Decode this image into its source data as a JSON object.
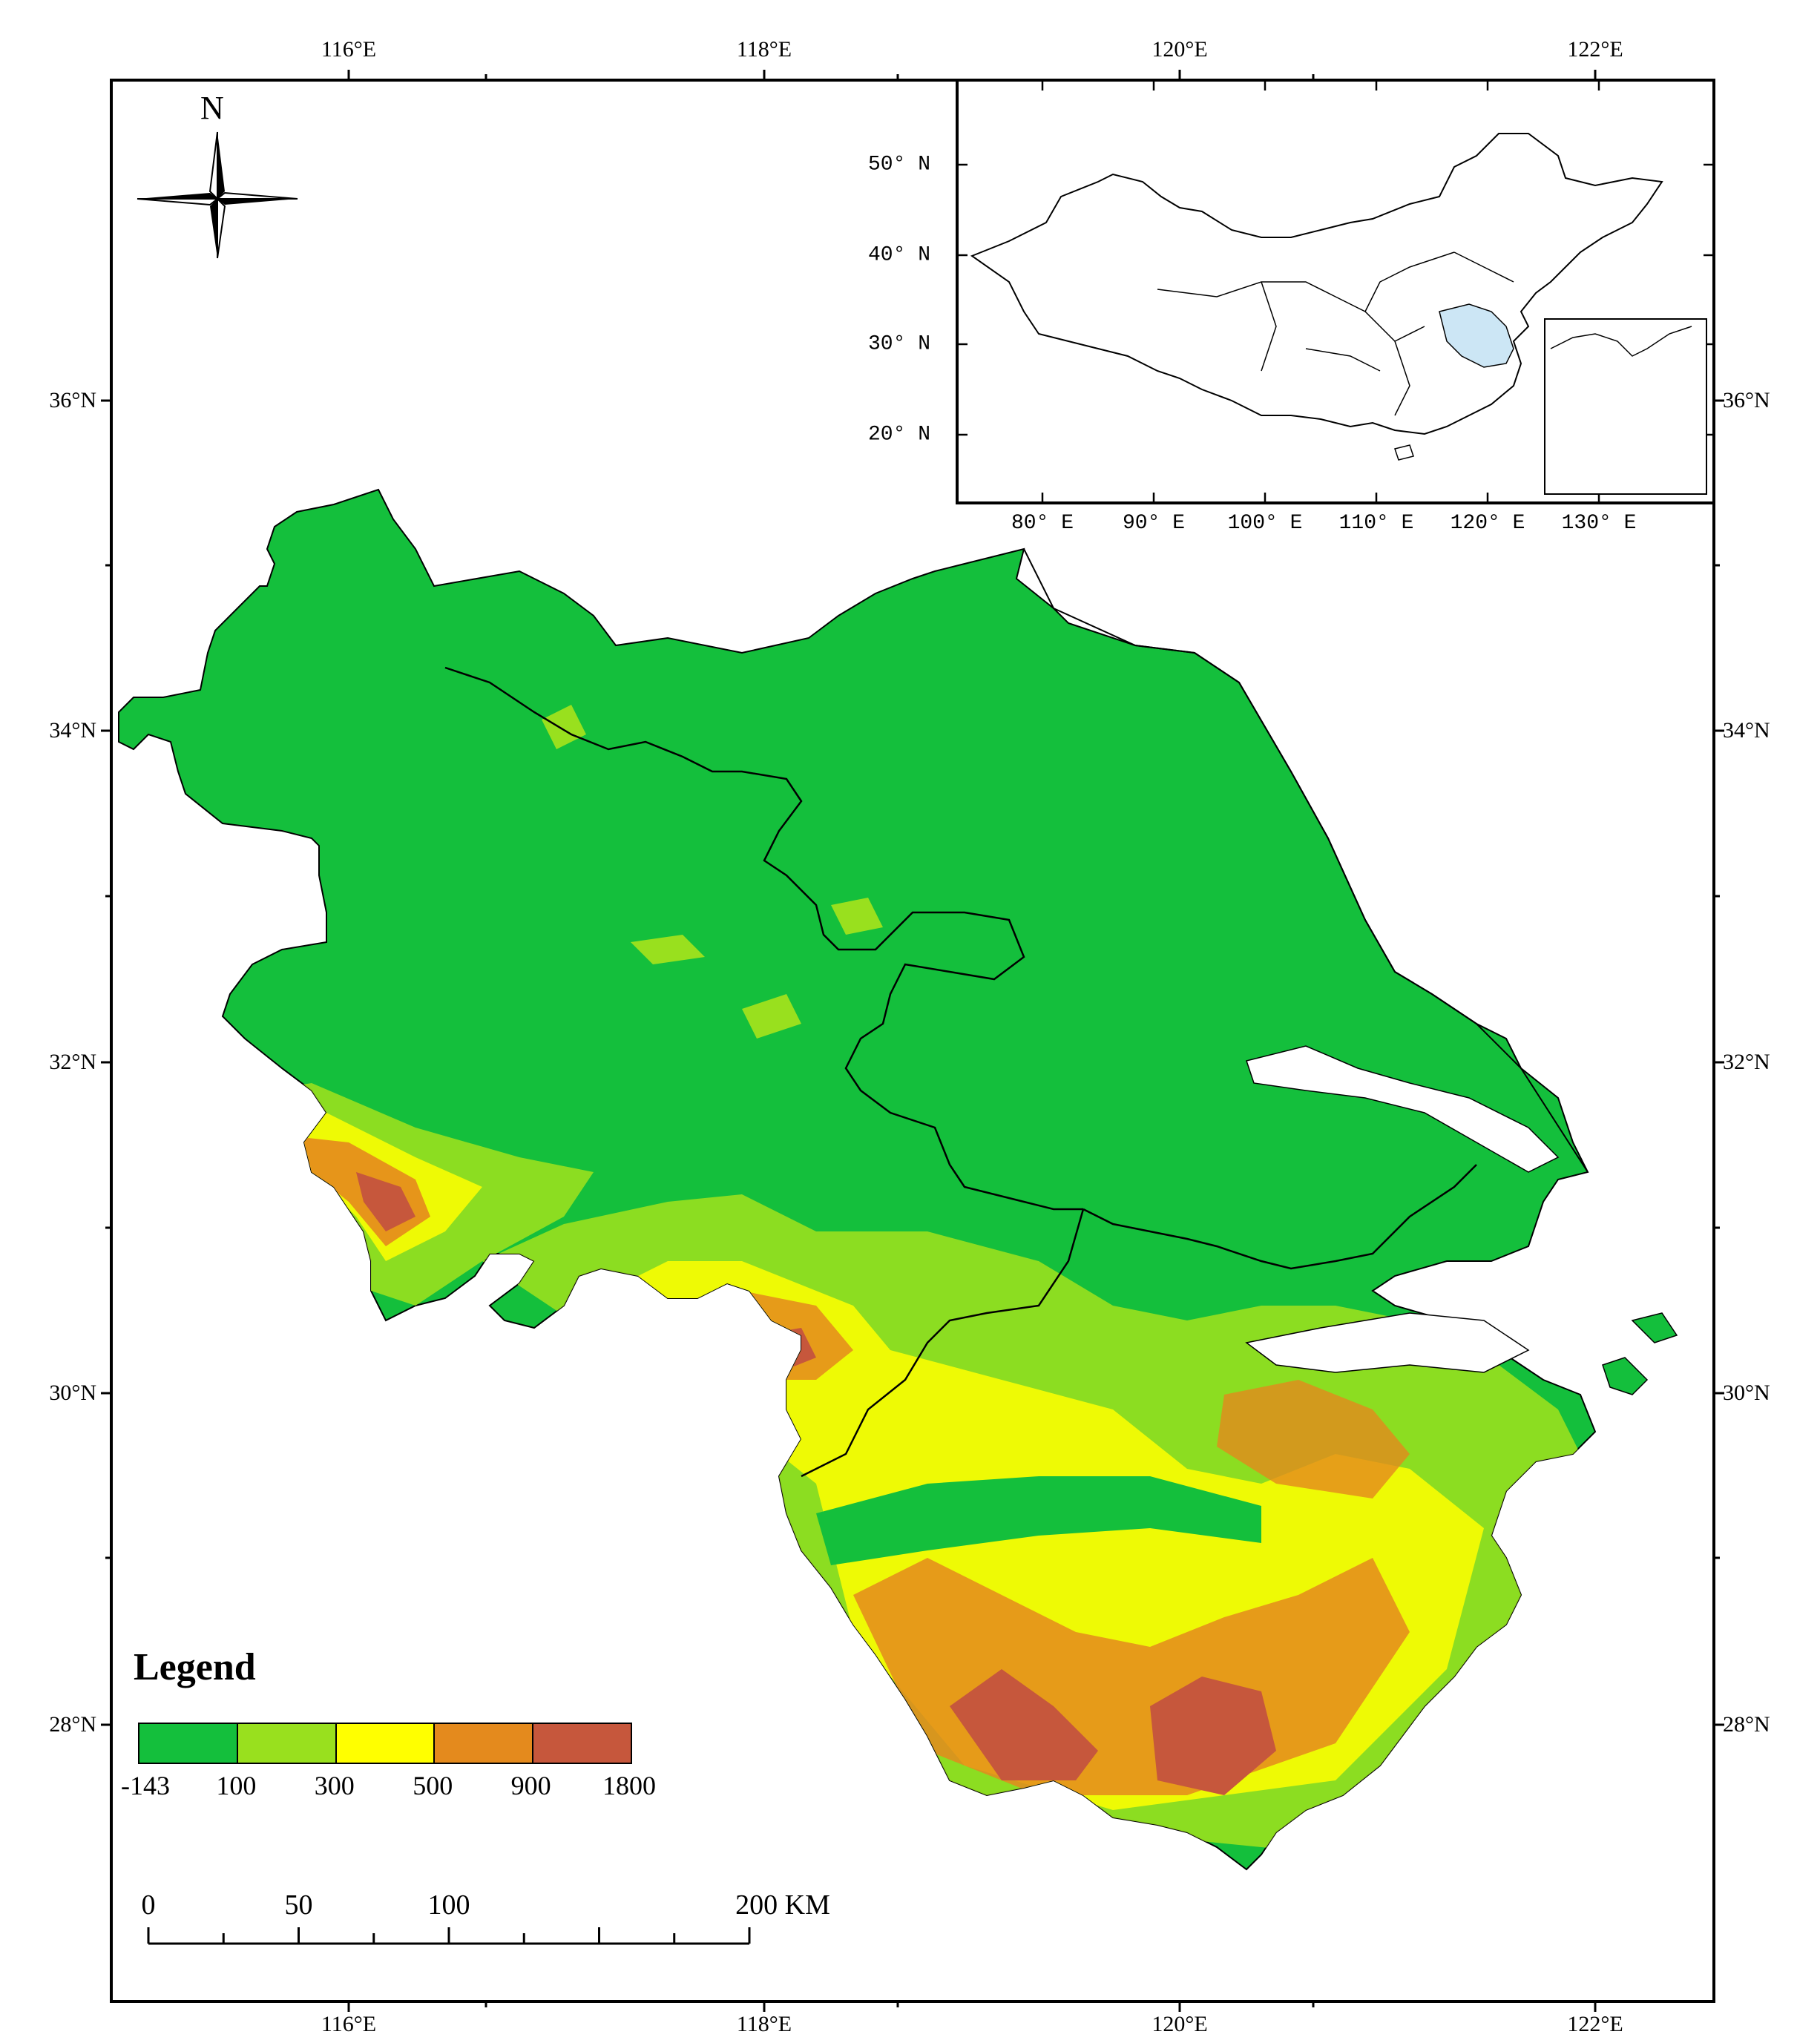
{
  "map": {
    "lon_labels_top": [
      "116°E",
      "118°E",
      "120°E",
      "122°E"
    ],
    "lon_labels_bottom": [
      "116°E",
      "118°E",
      "120°E",
      "122°E"
    ],
    "lat_labels_left": [
      "36°N",
      "34°N",
      "32°N",
      "30°N",
      "28°N"
    ],
    "lat_labels_right": [
      "36°N",
      "34°N",
      "32°N",
      "30°N",
      "28°N"
    ],
    "north_arrow": {
      "label": "N",
      "icon": "compass-rose-icon"
    },
    "colors": {
      "low": "#14bf3c",
      "lowland": "#99e01e",
      "hill": "#ffff00",
      "mountain": "#e48a1d",
      "high": "#c6573c",
      "water": "#ffffff",
      "highlight": "#cce6f5"
    }
  },
  "legend": {
    "title": "Legend",
    "breaks": [
      "-143",
      "100",
      "300",
      "500",
      "900",
      "1800"
    ],
    "classes": [
      {
        "color": "#14bf3c"
      },
      {
        "color": "#99e01e"
      },
      {
        "color": "#ffff00"
      },
      {
        "color": "#e48a1d"
      },
      {
        "color": "#c6573c"
      }
    ]
  },
  "scale_bar": {
    "labels": [
      "0",
      "50",
      "100",
      "200 KM"
    ],
    "values_km": [
      0,
      50,
      100,
      200
    ]
  },
  "inset": {
    "lat_labels": [
      "50° N",
      "40° N",
      "30° N",
      "20° N"
    ],
    "lon_labels": [
      "80° E",
      "90° E",
      "100° E",
      "110° E",
      "120° E",
      "130° E"
    ]
  }
}
